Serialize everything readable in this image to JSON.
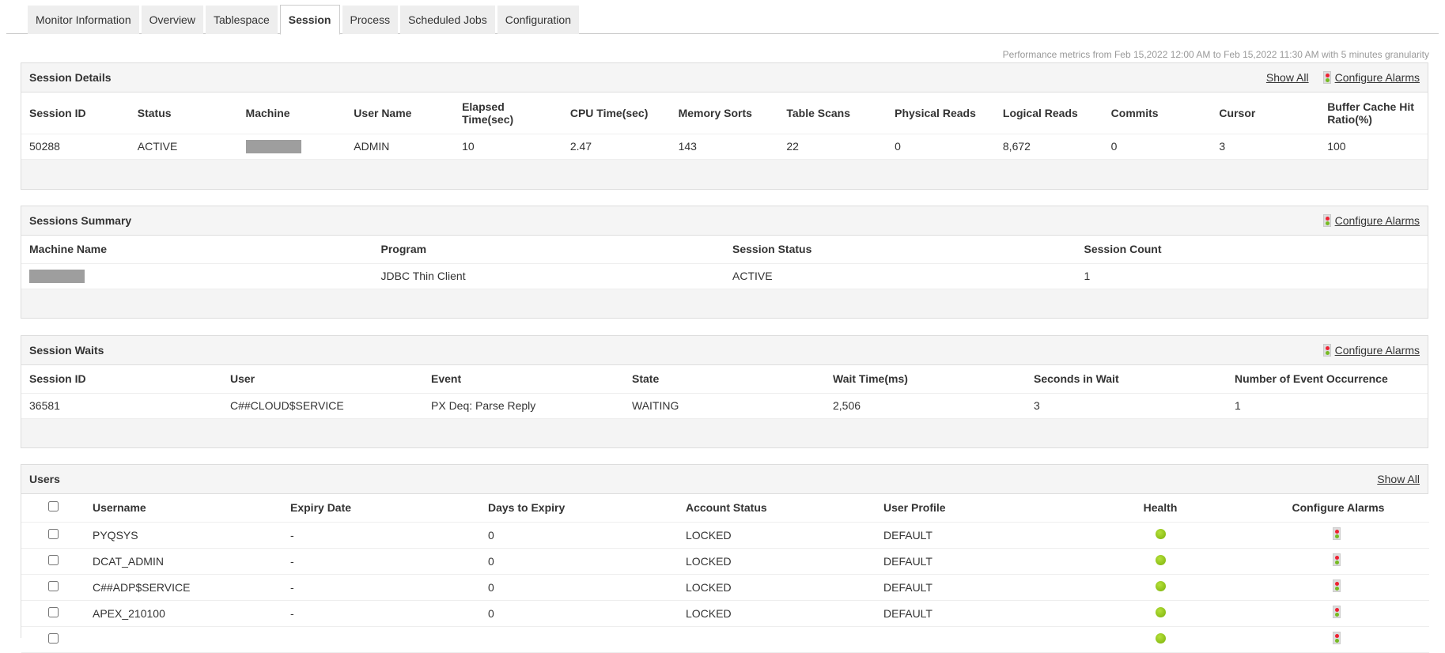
{
  "tabs": [
    "Monitor Information",
    "Overview",
    "Tablespace",
    "Session",
    "Process",
    "Scheduled Jobs",
    "Configuration"
  ],
  "active_tab": "Session",
  "perf_text": "Performance metrics from Feb 15,2022 12:00 AM to Feb 15,2022 11:30 AM with 5 minutes granularity",
  "session_details": {
    "title": "Session Details",
    "show_all": "Show All",
    "configure_alarms": "Configure Alarms",
    "columns": [
      "Session ID",
      "Status",
      "Machine",
      "User Name",
      "Elapsed Time(sec)",
      "CPU Time(sec)",
      "Memory Sorts",
      "Table Scans",
      "Physical Reads",
      "Logical Reads",
      "Commits",
      "Cursor",
      "Buffer Cache Hit Ratio(%)"
    ],
    "row": [
      "50288",
      "ACTIVE",
      "",
      "ADMIN",
      "10",
      "2.47",
      "143",
      "22",
      "0",
      "8,672",
      "0",
      "3",
      "100"
    ]
  },
  "sessions_summary": {
    "title": "Sessions Summary",
    "configure_alarms": "Configure Alarms",
    "columns": [
      "Machine Name",
      "Program",
      "Session Status",
      "Session Count"
    ],
    "row": [
      "",
      "JDBC Thin Client",
      "ACTIVE",
      "1"
    ]
  },
  "session_waits": {
    "title": "Session Waits",
    "configure_alarms": "Configure Alarms",
    "columns": [
      "Session ID",
      "User",
      "Event",
      "State",
      "Wait Time(ms)",
      "Seconds in Wait",
      "Number of Event Occurrence"
    ],
    "row": [
      "36581",
      "C##CLOUD$SERVICE",
      "PX Deq: Parse Reply",
      "WAITING",
      "2,506",
      "3",
      "1"
    ]
  },
  "users": {
    "title": "Users",
    "show_all": "Show All",
    "columns": [
      "Username",
      "Expiry Date",
      "Days to Expiry",
      "Account Status",
      "User Profile",
      "Health",
      "Configure Alarms"
    ],
    "rows": [
      [
        "PYQSYS",
        "-",
        "0",
        "LOCKED",
        "DEFAULT"
      ],
      [
        "DCAT_ADMIN",
        "-",
        "0",
        "LOCKED",
        "DEFAULT"
      ],
      [
        "C##ADP$SERVICE",
        "-",
        "0",
        "LOCKED",
        "DEFAULT"
      ],
      [
        "APEX_210100",
        "-",
        "0",
        "LOCKED",
        "DEFAULT"
      ],
      [
        "",
        "",
        "",
        "",
        ""
      ]
    ],
    "health": "green"
  }
}
